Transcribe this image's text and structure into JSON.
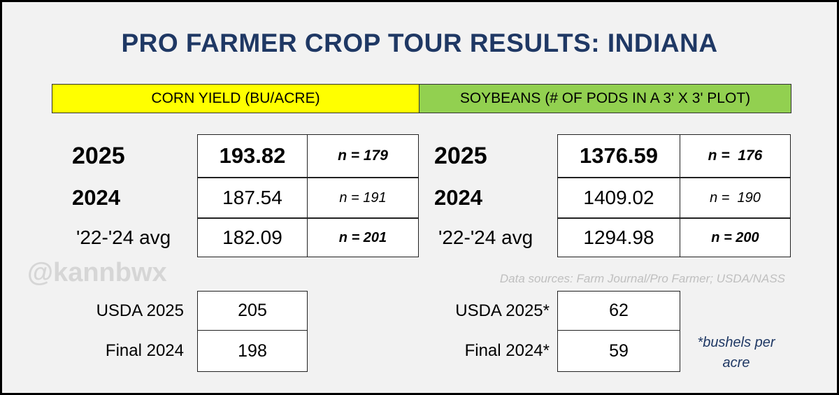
{
  "title": "PRO FARMER CROP TOUR RESULTS: INDIANA",
  "corn": {
    "header": "CORN YIELD (BU/ACRE)",
    "rows": [
      [
        "2025",
        193.82,
        "n = 179"
      ],
      [
        "2024",
        187.54,
        "n = 191"
      ],
      [
        "'22-'24 avg",
        182.09,
        "n = 201"
      ]
    ],
    "usda": [
      [
        "USDA 2025",
        205
      ],
      [
        "Final 2024",
        198
      ]
    ]
  },
  "soybeans": {
    "header": "SOYBEANS (# OF PODS IN A 3' X 3' PLOT)",
    "rows": [
      [
        "2025",
        1376.59,
        "n =  176"
      ],
      [
        "2024",
        1409.02,
        "n =  190"
      ],
      [
        "'22-'24 avg",
        1294.98,
        "n = 200"
      ]
    ],
    "usda": [
      [
        "USDA 2025*",
        62
      ],
      [
        "Final 2024*",
        59
      ]
    ]
  },
  "watermark": "@kannbwx",
  "source": "Data sources: Farm Journal/Pro Farmer; USDA/NASS",
  "footnote": "*bushels per acre"
}
